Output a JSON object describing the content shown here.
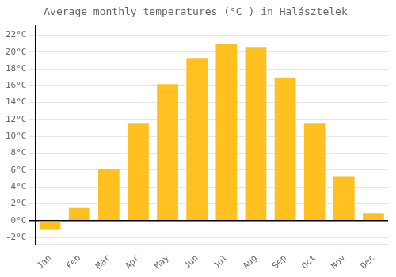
{
  "chart_data": {
    "type": "bar",
    "title": "Average monthly temperatures (°C ) in Halásztelek",
    "categories": [
      "Jan",
      "Feb",
      "Mar",
      "Apr",
      "May",
      "Jun",
      "Jul",
      "Aug",
      "Sep",
      "Oct",
      "Nov",
      "Dec"
    ],
    "values": [
      -1.0,
      1.5,
      6.1,
      11.5,
      16.2,
      19.3,
      21.0,
      20.5,
      17.0,
      11.5,
      5.2,
      0.9
    ],
    "color": "#FFC020",
    "ylim": [
      -2.8,
      23.2
    ],
    "yticks": [
      {
        "value": -2,
        "label": "-2°C"
      },
      {
        "value": 0,
        "label": "0°C"
      },
      {
        "value": 2,
        "label": "2°C"
      },
      {
        "value": 4,
        "label": "4°C"
      },
      {
        "value": 6,
        "label": "6°C"
      },
      {
        "value": 8,
        "label": "8°C"
      },
      {
        "value": 10,
        "label": "10°C"
      },
      {
        "value": 12,
        "label": "12°C"
      },
      {
        "value": 14,
        "label": "14°C"
      },
      {
        "value": 16,
        "label": "16°C"
      },
      {
        "value": 18,
        "label": "18°C"
      },
      {
        "value": 20,
        "label": "20°C"
      },
      {
        "value": 22,
        "label": "22°C"
      }
    ],
    "grid": true
  }
}
